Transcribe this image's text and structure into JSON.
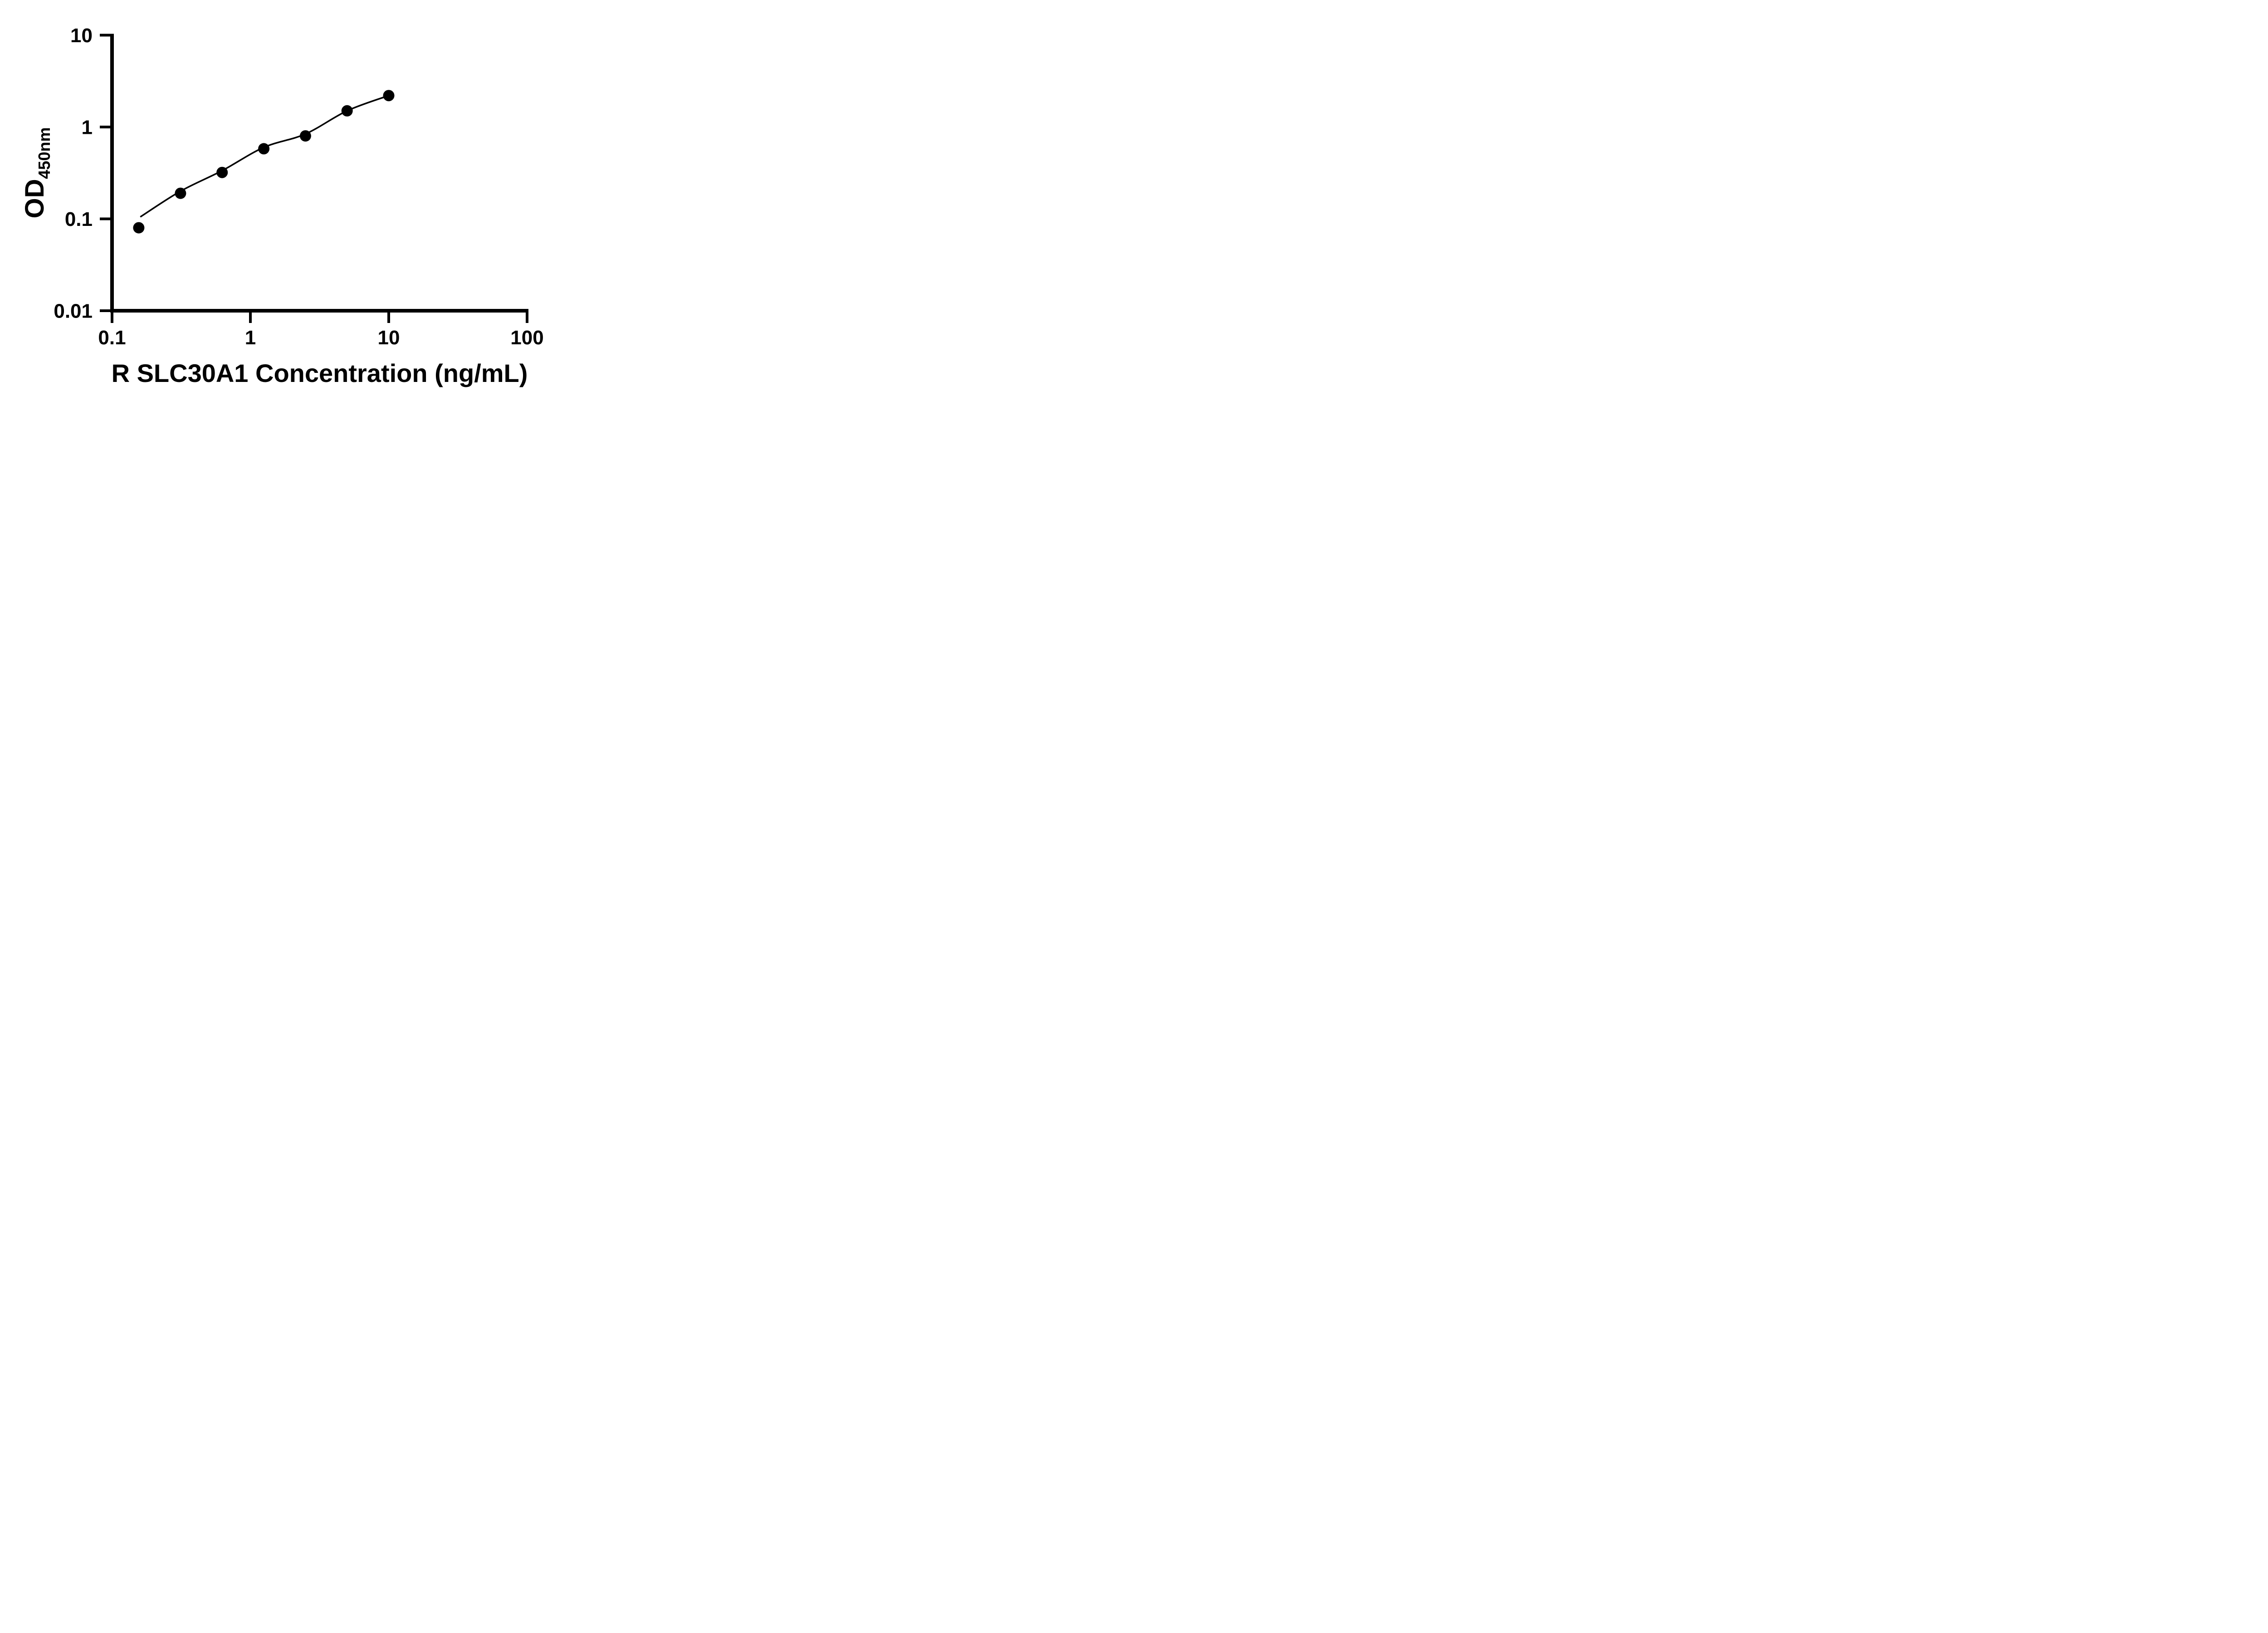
{
  "chart_data": {
    "type": "scatter",
    "title": "",
    "xlabel": "R SLC30A1 Concentration (ng/mL)",
    "ylabel": "OD",
    "ylabel_subscript": "450nm",
    "x_scale": "log10",
    "y_scale": "log10",
    "xlim": [
      0.1,
      100
    ],
    "ylim": [
      0.01,
      10
    ],
    "x_ticks": [
      "0.1",
      "1",
      "10",
      "100"
    ],
    "y_ticks": [
      "10",
      "1",
      "0.1",
      "0.01"
    ],
    "grid": false,
    "legend": null,
    "series": [
      {
        "name": "standard-data-points",
        "kind": "scatter",
        "marker": "filled-circle",
        "x": [
          0.156,
          0.3125,
          0.625,
          1.25,
          2.5,
          5,
          10
        ],
        "y": [
          0.08,
          0.19,
          0.32,
          0.58,
          0.8,
          1.5,
          2.2
        ]
      },
      {
        "name": "fit-curve",
        "kind": "line",
        "x": [
          0.16,
          0.3125,
          0.625,
          1.25,
          2.5,
          5,
          10
        ],
        "y": [
          0.105,
          0.2,
          0.335,
          0.6,
          0.84,
          1.5,
          2.2
        ]
      }
    ],
    "colors": {
      "marker": "#000000",
      "line": "#000000",
      "axis": "#000000",
      "text": "#000000",
      "background": "#ffffff"
    }
  }
}
